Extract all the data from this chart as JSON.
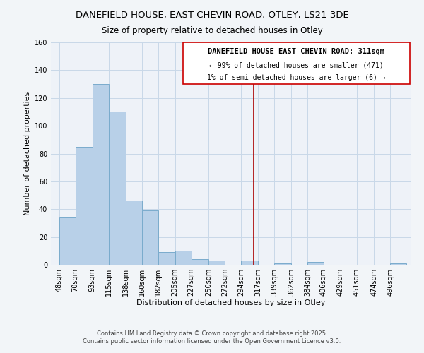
{
  "title1": "DANEFIELD HOUSE, EAST CHEVIN ROAD, OTLEY, LS21 3DE",
  "title2": "Size of property relative to detached houses in Otley",
  "xlabel": "Distribution of detached houses by size in Otley",
  "ylabel": "Number of detached properties",
  "bin_labels": [
    "48sqm",
    "70sqm",
    "93sqm",
    "115sqm",
    "138sqm",
    "160sqm",
    "182sqm",
    "205sqm",
    "227sqm",
    "250sqm",
    "272sqm",
    "294sqm",
    "317sqm",
    "339sqm",
    "362sqm",
    "384sqm",
    "406sqm",
    "429sqm",
    "451sqm",
    "474sqm",
    "496sqm"
  ],
  "bin_edges": [
    48,
    70,
    93,
    115,
    138,
    160,
    182,
    205,
    227,
    250,
    272,
    294,
    317,
    339,
    362,
    384,
    406,
    429,
    451,
    474,
    496
  ],
  "counts": [
    34,
    85,
    130,
    110,
    46,
    39,
    9,
    10,
    4,
    3,
    0,
    3,
    0,
    1,
    0,
    2,
    0,
    0,
    0,
    0,
    1
  ],
  "bar_facecolor": "#b8d0e8",
  "bar_edgecolor": "#7aabcc",
  "vline_x": 311,
  "vline_color": "#aa0000",
  "annotation_title": "DANEFIELD HOUSE EAST CHEVIN ROAD: 311sqm",
  "annotation_line1": "← 99% of detached houses are smaller (471)",
  "annotation_line2": "1% of semi-detached houses are larger (6) →",
  "annotation_box_edgecolor": "#cc0000",
  "ylim": [
    0,
    160
  ],
  "yticks": [
    0,
    20,
    40,
    60,
    80,
    100,
    120,
    140,
    160
  ],
  "footnote1": "Contains HM Land Registry data © Crown copyright and database right 2025.",
  "footnote2": "Contains public sector information licensed under the Open Government Licence v3.0.",
  "bg_color": "#f2f5f8",
  "plot_bg_color": "#eef2f8",
  "grid_color": "#c8d8e8",
  "title_fontsize": 9.5,
  "subtitle_fontsize": 8.5,
  "axis_label_fontsize": 8,
  "tick_fontsize": 7,
  "annotation_fontsize": 7.5
}
